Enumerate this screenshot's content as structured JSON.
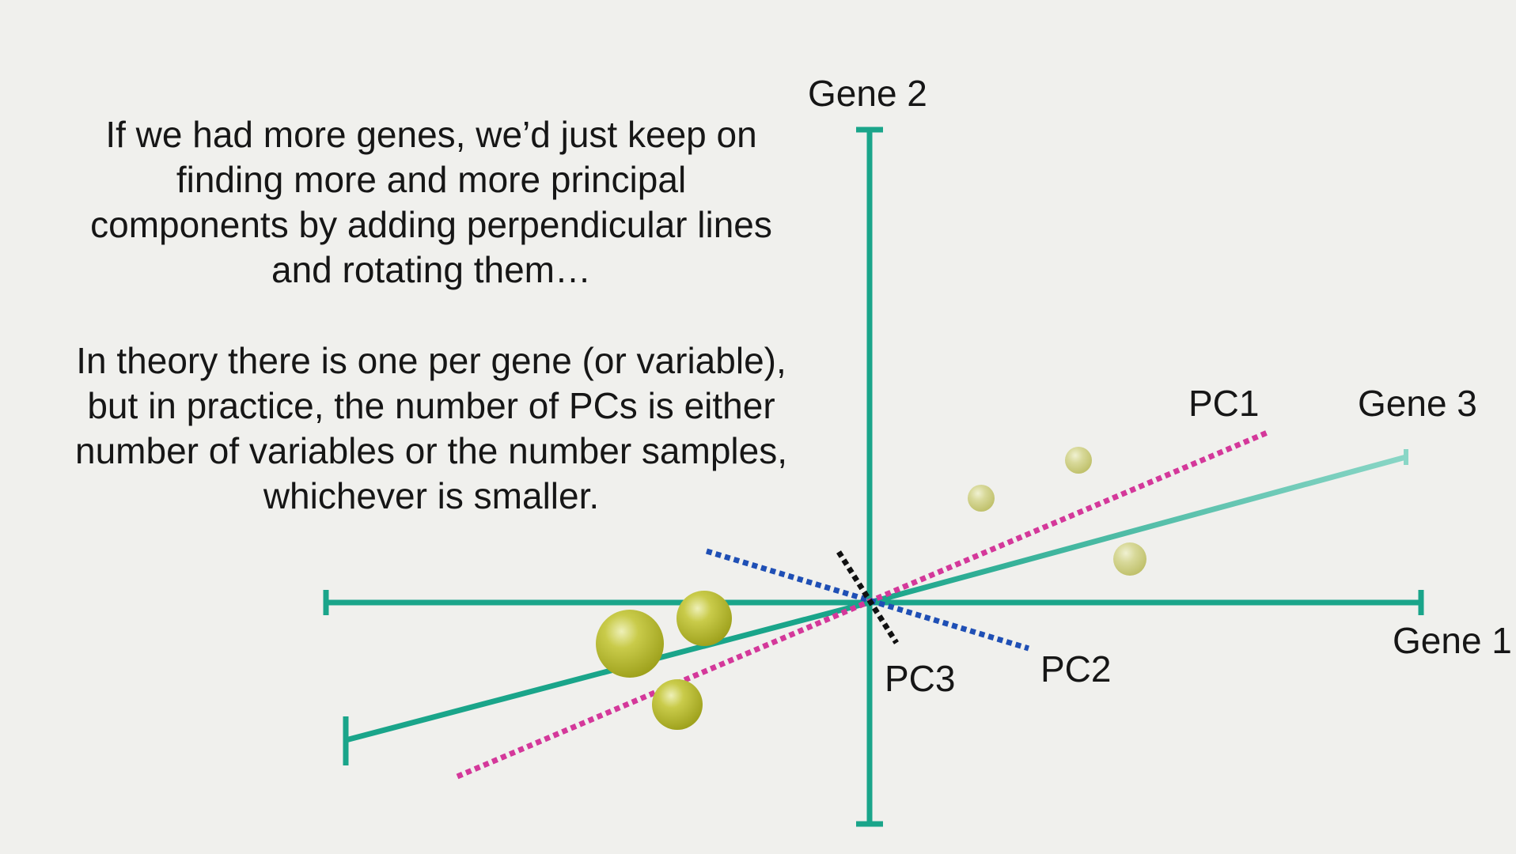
{
  "slide": {
    "paragraph1": [
      "If we had more genes, we’d just keep on",
      "finding more and more principal",
      "components by adding perpendicular lines",
      "and rotating them…"
    ],
    "paragraph2": [
      "In theory there is one per gene (or variable),",
      "but in practice, the number of PCs is either",
      "number of variables or the number samples,",
      "whichever is smaller."
    ]
  },
  "diagram": {
    "axis_labels": {
      "gene1": "Gene 1",
      "gene2": "Gene 2",
      "gene3": "Gene 3"
    },
    "pc_labels": {
      "pc1": "PC1",
      "pc2": "PC2",
      "pc3": "PC3"
    },
    "colors": {
      "axis": "#1aa58a",
      "pc1": "#d4389a",
      "pc2": "#1f4fb5",
      "pc3": "#111111",
      "point": "#b2b525",
      "background": "#f0f0ed"
    }
  }
}
